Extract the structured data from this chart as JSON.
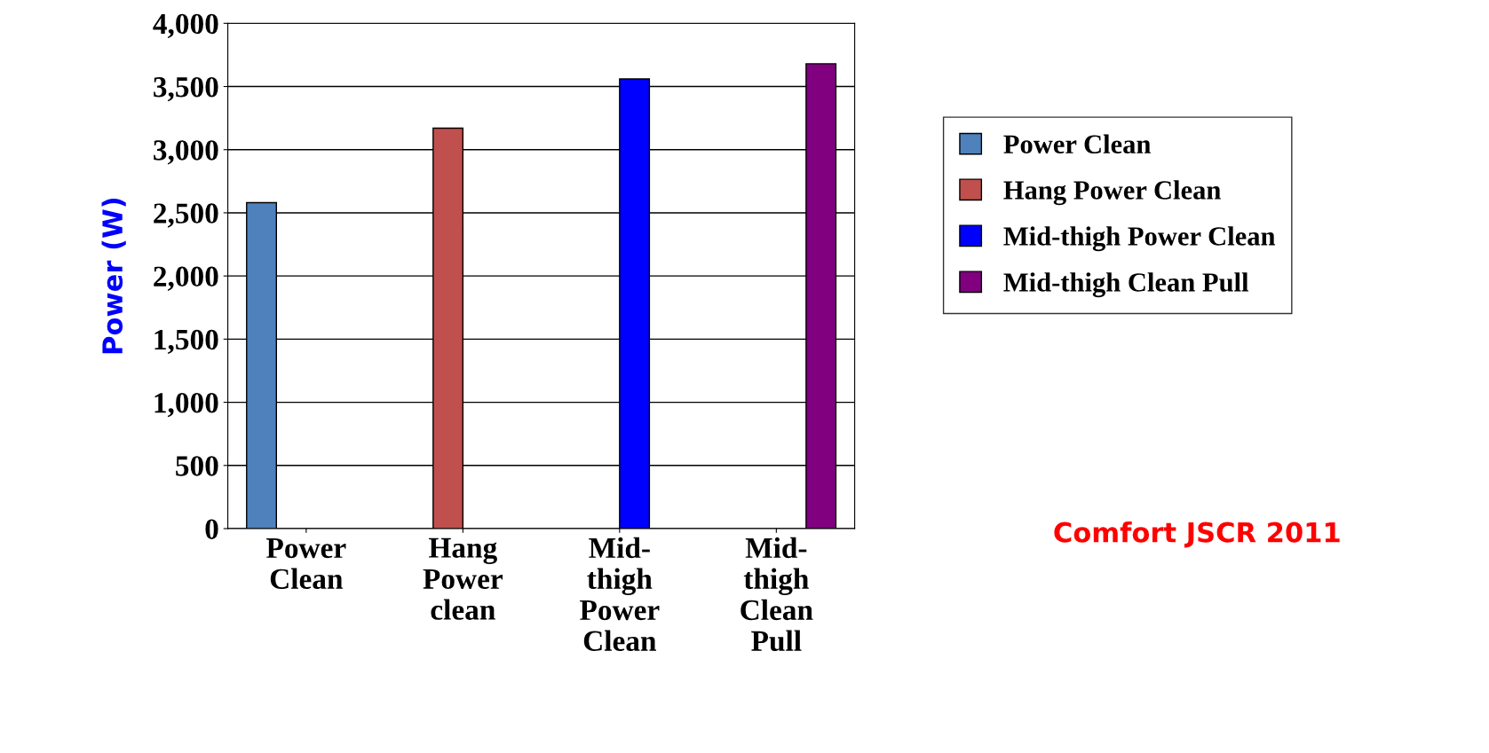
{
  "chart_data": {
    "type": "bar",
    "ylabel": "Power (W)",
    "categories": [
      "Power\nClean",
      "Hang\nPower\nclean",
      "Mid-\nthigh\nPower\nClean",
      "Mid-\nthigh\nClean\nPull"
    ],
    "series": [
      {
        "name": "Power Clean",
        "color": "#4f81bd",
        "values": [
          2580,
          null,
          null,
          null
        ]
      },
      {
        "name": "Hang Power Clean",
        "color": "#c0504d",
        "values": [
          null,
          3170,
          null,
          null
        ]
      },
      {
        "name": "Mid-thigh Power Clean",
        "color": "#0000ff",
        "values": [
          null,
          null,
          3560,
          null
        ]
      },
      {
        "name": "Mid-thigh Clean Pull",
        "color": "#800080",
        "values": [
          null,
          null,
          null,
          3680
        ]
      }
    ],
    "ylim": [
      0,
      4000
    ],
    "yticks": [
      {
        "value": 0,
        "label": "0"
      },
      {
        "value": 500,
        "label": "500"
      },
      {
        "value": 1000,
        "label": "1,000"
      },
      {
        "value": 1500,
        "label": "1,500"
      },
      {
        "value": 2000,
        "label": "2,000"
      },
      {
        "value": 2500,
        "label": "2,500"
      },
      {
        "value": 3000,
        "label": "3,000"
      },
      {
        "value": 3500,
        "label": "3,500"
      },
      {
        "value": 4000,
        "label": "4,000"
      }
    ],
    "grid": "y",
    "legend": "right",
    "annotations": [
      "Comfort JSCR 2011"
    ]
  }
}
